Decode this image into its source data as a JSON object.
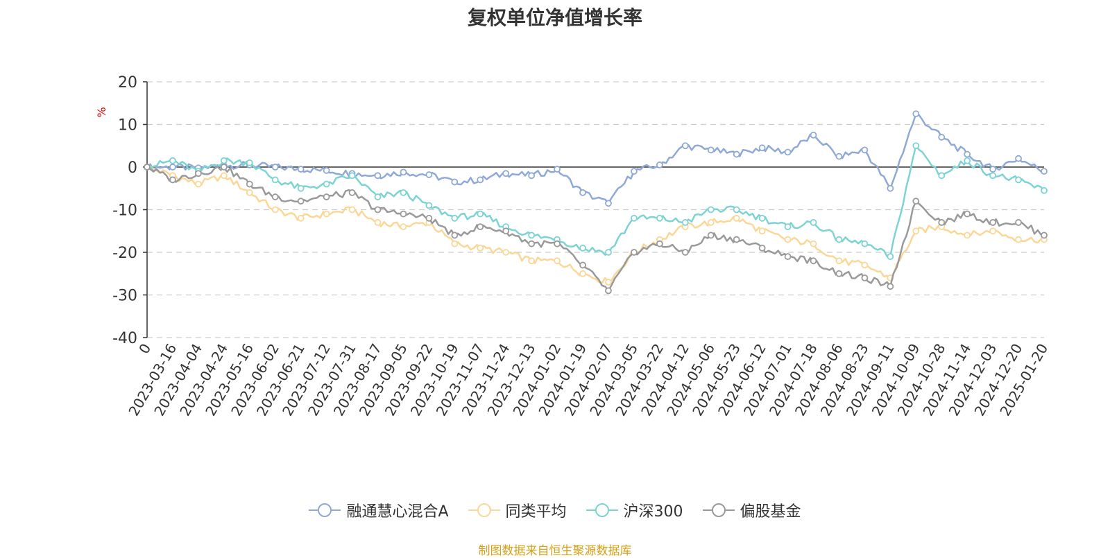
{
  "chart_data": {
    "type": "line",
    "title": "复权单位净值增长率",
    "ylabel": "%",
    "ylim": [
      -40,
      20
    ],
    "yticks": [
      20,
      10,
      0,
      -10,
      -20,
      -30,
      -40
    ],
    "x_ticks": [
      "0",
      "2023-03-16",
      "2023-04-04",
      "2023-04-24",
      "2023-05-16",
      "2023-06-02",
      "2023-06-21",
      "2023-07-12",
      "2023-07-31",
      "2023-08-17",
      "2023-09-05",
      "2023-09-22",
      "2023-10-19",
      "2023-11-07",
      "2023-11-24",
      "2023-12-13",
      "2024-01-02",
      "2024-01-19",
      "2024-02-07",
      "2024-03-05",
      "2024-03-22",
      "2024-04-12",
      "2024-05-06",
      "2024-05-23",
      "2024-06-12",
      "2024-07-01",
      "2024-07-18",
      "2024-08-06",
      "2024-08-23",
      "2024-09-11",
      "2024-10-09",
      "2024-10-28",
      "2024-11-14",
      "2024-12-03",
      "2024-12-20",
      "2025-01-20"
    ],
    "grid": true,
    "legend_position": "bottom",
    "series": [
      {
        "name": "融通慧心混合A",
        "color": "#8fa9d7",
        "values": [
          0,
          0,
          -0.2,
          0.3,
          0.5,
          0,
          -0.5,
          -0.8,
          -1.5,
          -2,
          -1.2,
          -1.8,
          -3.5,
          -3,
          -1.5,
          -2,
          -0.5,
          -6,
          -8.5,
          -1,
          0.5,
          5,
          4,
          3,
          4.5,
          3.5,
          7.5,
          2.5,
          4,
          -5,
          12.5,
          7,
          3,
          -0.5,
          2,
          -1
        ]
      },
      {
        "name": "同类平均",
        "color": "#fad797",
        "values": [
          0,
          -2,
          -4,
          -2,
          -6,
          -10,
          -12,
          -11,
          -10,
          -13,
          -14,
          -13,
          -18,
          -19,
          -20,
          -22,
          -22,
          -25,
          -27,
          -20,
          -17,
          -14,
          -13,
          -12,
          -15,
          -17,
          -18,
          -22,
          -23,
          -26,
          -15,
          -14,
          -16,
          -15,
          -17,
          -17
        ]
      },
      {
        "name": "沪深300",
        "color": "#7dd3d3",
        "values": [
          0,
          1.5,
          -1,
          1.5,
          1,
          -3,
          -5,
          -4,
          -2,
          -7,
          -6,
          -9,
          -12,
          -11,
          -14,
          -16,
          -17,
          -19,
          -20,
          -12,
          -12,
          -13,
          -10,
          -10,
          -12,
          -14,
          -13,
          -17,
          -18,
          -21,
          5,
          -2,
          1.5,
          -2,
          -3,
          -5.5
        ]
      },
      {
        "name": "偏股基金",
        "color": "#999999",
        "values": [
          0,
          -3,
          -1.5,
          0,
          -4,
          -7,
          -8,
          -7,
          -6,
          -10,
          -11,
          -12,
          -16,
          -14,
          -15,
          -18,
          -18,
          -23,
          -29,
          -20,
          -18,
          -20,
          -16,
          -17,
          -19,
          -21,
          -22,
          -25,
          -26,
          -28,
          -8,
          -13,
          -11,
          -13,
          -13,
          -16
        ]
      }
    ]
  },
  "footer": {
    "source": "制图数据来自恒生聚源数据库"
  }
}
